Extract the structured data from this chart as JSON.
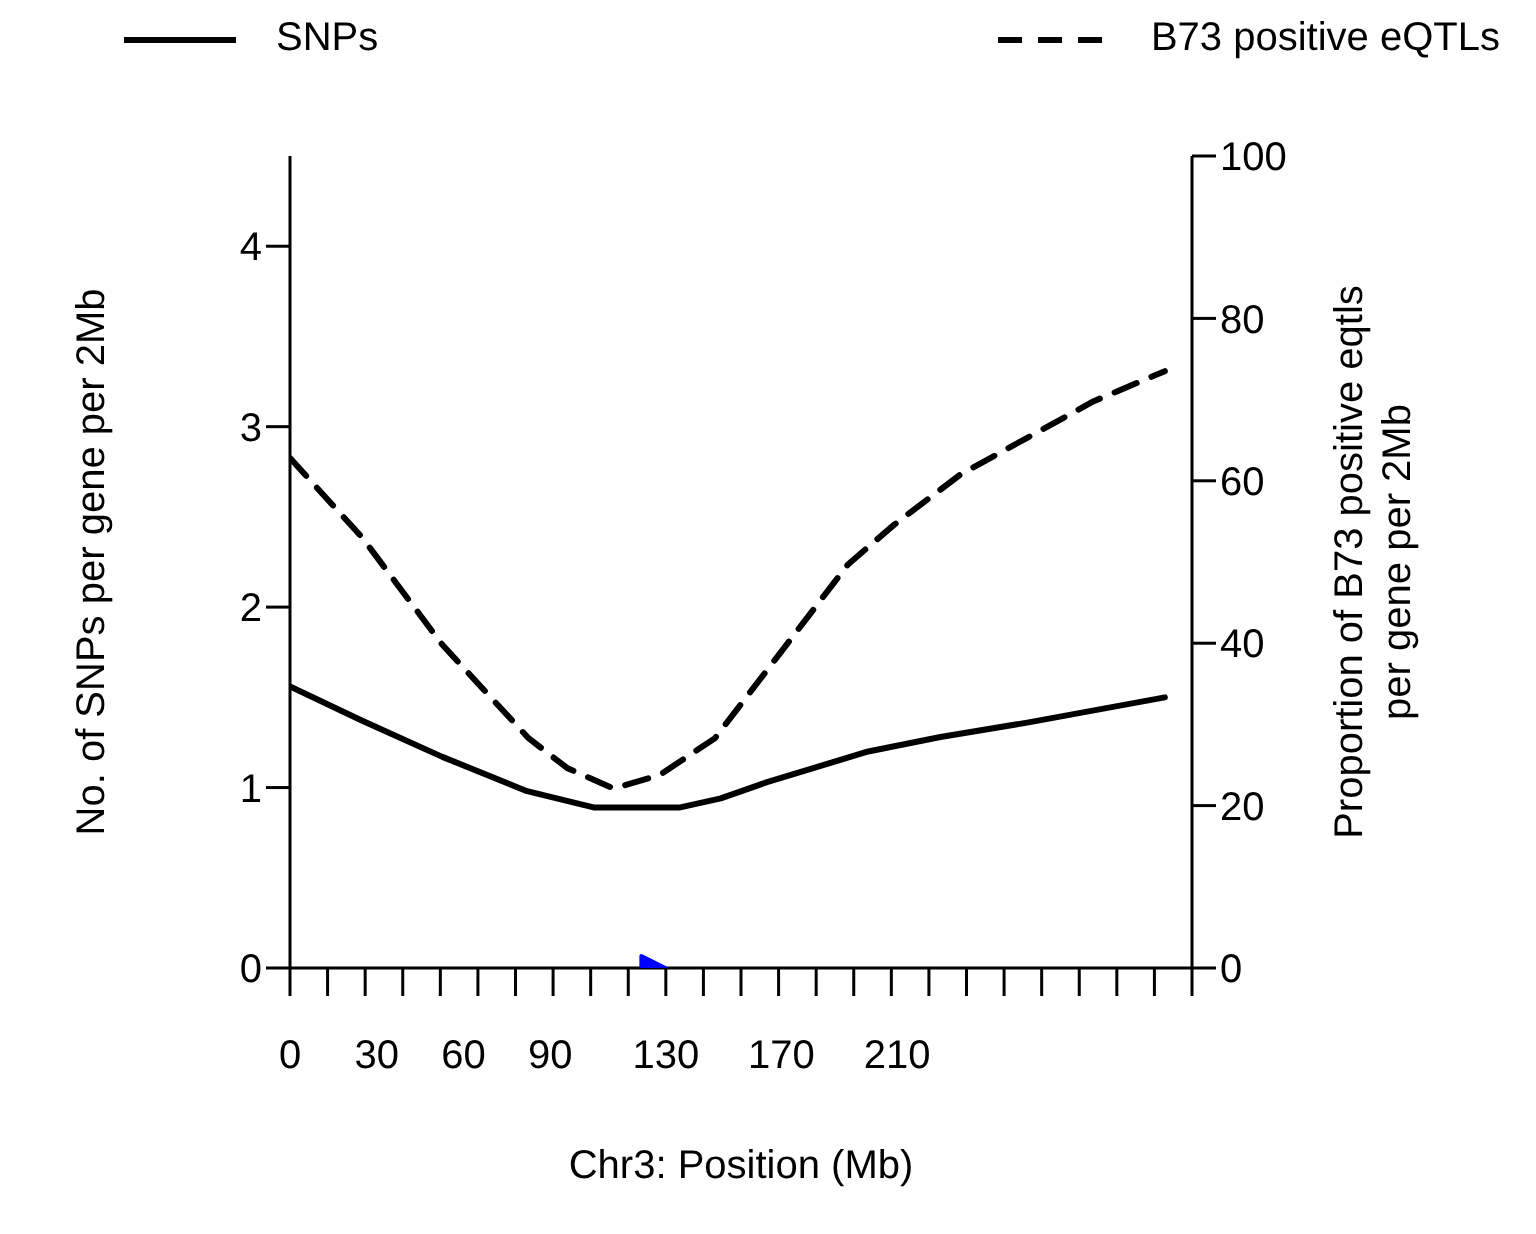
{
  "chart_data": {
    "type": "line",
    "xlabel": "Chr3: Position (Mb)",
    "ylabel": "No. of SNPs per gene per 2Mb",
    "y2label": "Proportion of B73 positive eqtls per gene per 2Mb",
    "legend": "top",
    "xlim": [
      0,
      312
    ],
    "xticks": [
      0,
      30,
      60,
      90,
      130,
      170,
      210,
      {
        "value": 0,
        "label": null
      },
      {
        "value": 13,
        "label": null
      },
      {
        "value": 26,
        "label": null
      },
      {
        "value": 39,
        "label": null
      },
      {
        "value": 52,
        "label": null
      },
      {
        "value": 65,
        "label": null
      },
      {
        "value": 78,
        "label": null
      },
      {
        "value": 91,
        "label": null
      },
      {
        "value": 104,
        "label": null
      },
      {
        "value": 117,
        "label": null
      },
      {
        "value": 130,
        "label": null
      },
      {
        "value": 143,
        "label": null
      },
      {
        "value": 156,
        "label": null
      },
      {
        "value": 169,
        "label": null
      },
      {
        "value": 182,
        "label": null
      },
      {
        "value": 195,
        "label": null
      },
      {
        "value": 208,
        "label": null
      },
      {
        "value": 221,
        "label": null
      },
      {
        "value": 234,
        "label": null
      },
      {
        "value": 247,
        "label": null
      },
      {
        "value": 260,
        "label": null
      },
      {
        "value": 273,
        "label": null
      },
      {
        "value": 286,
        "label": null
      },
      {
        "value": 299,
        "label": null
      },
      {
        "value": 312,
        "label": null
      }
    ],
    "ylim": [
      0,
      4.5
    ],
    "yticks": [
      0,
      1,
      2,
      3,
      4
    ],
    "y2lim": [
      0,
      100
    ],
    "y2ticks": [
      0,
      20,
      40,
      60,
      80,
      100
    ],
    "series": [
      {
        "name": "SNPs",
        "color": "#000000",
        "line_style": "solid",
        "x": [
          0,
          25,
          52.7,
          82,
          105,
          135,
          149,
          165,
          200,
          225,
          255,
          302.6
        ],
        "values": [
          1.56,
          1.37,
          1.17,
          0.98,
          0.89,
          0.89,
          0.94,
          1.03,
          1.2,
          1.28,
          1.36,
          1.5
        ]
      },
      {
        "name": "B73 positive eQTLs",
        "color": "#000000",
        "line_style": "dashed",
        "axis": "y2",
        "x": [
          0,
          25,
          52.7,
          82.5,
          96,
          112,
          128,
          147,
          170,
          193,
          209,
          232,
          255,
          278,
          302.6
        ],
        "values": [
          62.8,
          53,
          39.8,
          28.3,
          24.6,
          22.1,
          23.8,
          28.3,
          39,
          49.7,
          54.6,
          60.8,
          65.3,
          69.8,
          73.5
        ]
      },
      {
        "type": "scatter",
        "color": "#0000ff",
        "marker": "triangle",
        "x": [
          125
        ],
        "values": [
          0
        ]
      }
    ]
  }
}
